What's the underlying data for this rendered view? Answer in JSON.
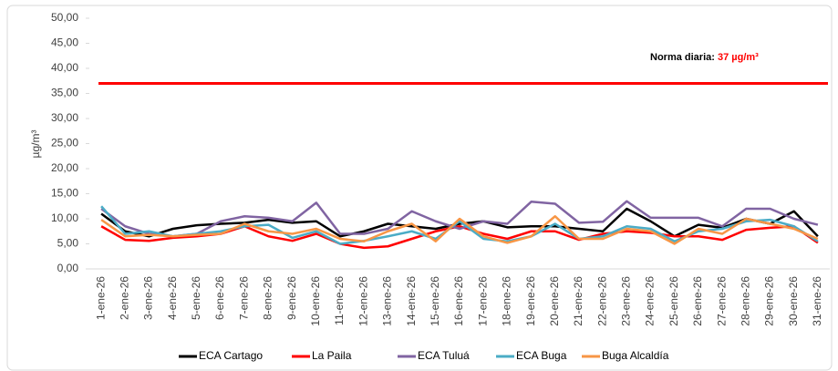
{
  "chart_data": {
    "type": "line",
    "y_label": "µg/m³",
    "categories": [
      "1-ene-26",
      "2-ene-26",
      "3-ene-26",
      "4-ene-26",
      "5-ene-26",
      "6-ene-26",
      "7-ene-26",
      "8-ene-26",
      "9-ene-26",
      "10-ene-26",
      "11-ene-26",
      "12-ene-26",
      "13-ene-26",
      "14-ene-26",
      "15-ene-26",
      "16-ene-26",
      "17-ene-26",
      "18-ene-26",
      "19-ene-26",
      "20-ene-26",
      "21-ene-26",
      "22-ene-26",
      "23-ene-26",
      "24-ene-26",
      "25-ene-26",
      "26-ene-26",
      "27-ene-26",
      "28-ene-26",
      "29-ene-26",
      "30-ene-26",
      "31-ene-26"
    ],
    "series": [
      {
        "name": "ECA Cartago",
        "color": "#000000",
        "values": [
          11,
          7.5,
          6.5,
          8,
          8.7,
          9,
          9.2,
          9.8,
          9.2,
          9.5,
          6.5,
          7.5,
          9,
          8.5,
          8,
          9,
          9.5,
          8.3,
          8.5,
          8.5,
          8,
          7.5,
          12,
          9.5,
          6.5,
          8.8,
          8.2,
          10,
          9,
          11.5,
          6.5
        ]
      },
      {
        "name": "La Paila",
        "color": "#ff0000",
        "values": [
          8.5,
          5.8,
          5.6,
          6.2,
          6.5,
          7,
          8.5,
          6.5,
          5.6,
          7,
          5,
          4.2,
          4.5,
          6,
          7.5,
          8.5,
          7,
          6,
          7.5,
          7.5,
          5.8,
          7,
          7.5,
          7.2,
          6.5,
          6.5,
          5.8,
          7.8,
          8.2,
          8.5,
          5.2
        ]
      },
      {
        "name": "ECA Tuluá",
        "color": "#8064a2",
        "values": [
          12,
          8.5,
          7,
          6.5,
          7,
          9.5,
          10.5,
          10.2,
          9.5,
          13.2,
          7,
          7,
          8,
          11.5,
          9.5,
          8,
          9.5,
          9,
          13.4,
          13,
          9.2,
          9.4,
          13.5,
          10.2,
          10.2,
          10.2,
          8.5,
          12,
          12,
          10,
          8.8
        ]
      },
      {
        "name": "ECA Buga",
        "color": "#4bacc6",
        "values": [
          12.5,
          7,
          7.5,
          6.5,
          7,
          7.5,
          8.5,
          8.8,
          6.2,
          7.5,
          5,
          5.6,
          6.5,
          7.5,
          6,
          9.5,
          6,
          5.5,
          6.5,
          9,
          6,
          6.5,
          8.5,
          8,
          5.5,
          7.5,
          8,
          9.5,
          9.8,
          8.5,
          5.5
        ]
      },
      {
        "name": "Buga Alcaldía",
        "color": "#f79646",
        "values": [
          9.8,
          6.5,
          6.8,
          6.5,
          6.8,
          7,
          9,
          7.5,
          7,
          8,
          6,
          5.5,
          7.5,
          9,
          5.5,
          10,
          6.5,
          5.2,
          6.5,
          10.5,
          6,
          6,
          8,
          7.5,
          5,
          8,
          7,
          10,
          9,
          8,
          6
        ]
      }
    ],
    "norm": {
      "label": "Norma diaria:",
      "value": 37,
      "value_label": "37 µg/m³",
      "color": "#ff0000"
    },
    "ylim": [
      0,
      50
    ],
    "yticks": [
      {
        "value": 0,
        "label": "0,00"
      },
      {
        "value": 5,
        "label": "5,00"
      },
      {
        "value": 10,
        "label": "10,00"
      },
      {
        "value": 15,
        "label": "15,00"
      },
      {
        "value": 20,
        "label": "20,00"
      },
      {
        "value": 25,
        "label": "25,00"
      },
      {
        "value": 30,
        "label": "30,00"
      },
      {
        "value": 35,
        "label": "35,00"
      },
      {
        "value": 40,
        "label": "40,00"
      },
      {
        "value": 45,
        "label": "45,00"
      },
      {
        "value": 50,
        "label": "50,00"
      }
    ]
  }
}
